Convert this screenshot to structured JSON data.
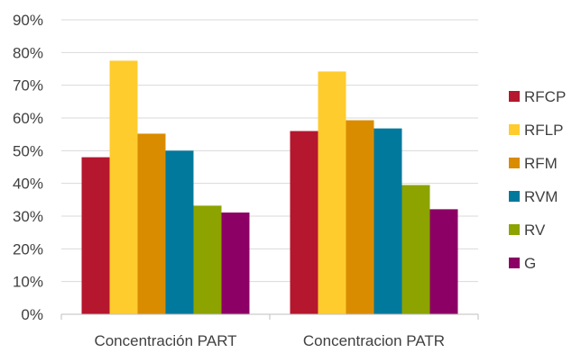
{
  "chart_data": {
    "type": "bar",
    "categories": [
      "Concentración PART",
      "Concentracion PATR"
    ],
    "series": [
      {
        "name": "RFCP",
        "color": "#b5172e",
        "values": [
          0.48,
          0.56
        ]
      },
      {
        "name": "RFLP",
        "color": "#ffcc2e",
        "values": [
          0.775,
          0.742
        ]
      },
      {
        "name": "RFM",
        "color": "#d98c00",
        "values": [
          0.552,
          0.593
        ]
      },
      {
        "name": "RVM",
        "color": "#00799c",
        "values": [
          0.5,
          0.568
        ]
      },
      {
        "name": "RV",
        "color": "#8ca300",
        "values": [
          0.332,
          0.395
        ]
      },
      {
        "name": "G",
        "color": "#8c0066",
        "values": [
          0.311,
          0.321
        ]
      }
    ],
    "ylim": [
      0,
      0.9
    ],
    "yticks": [
      "0%",
      "10%",
      "20%",
      "30%",
      "40%",
      "50%",
      "60%",
      "70%",
      "80%",
      "90%"
    ],
    "grid": true,
    "legend": "right"
  }
}
